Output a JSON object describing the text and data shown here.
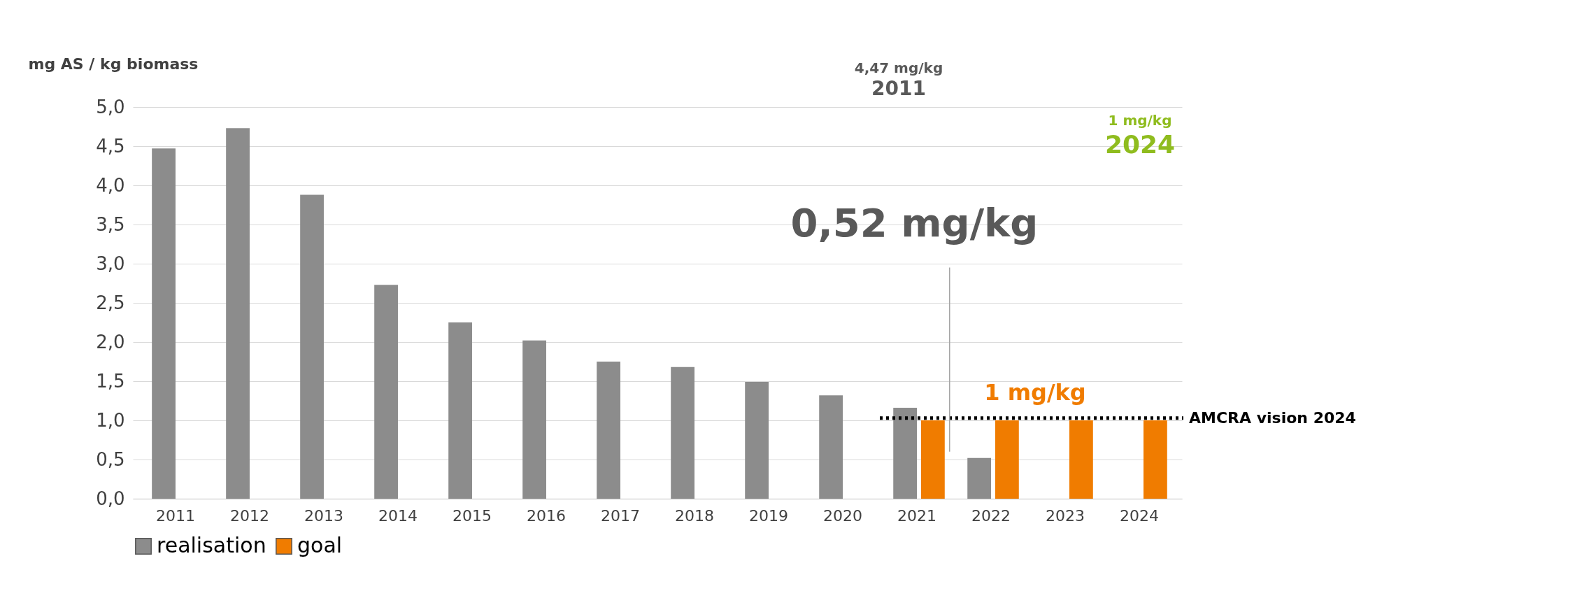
{
  "chart_data": {
    "type": "bar",
    "ylabel": "mg AS / kg biomass",
    "categories": [
      "2011",
      "2012",
      "2013",
      "2014",
      "2015",
      "2016",
      "2017",
      "2018",
      "2019",
      "2020",
      "2021",
      "2022",
      "2023",
      "2024"
    ],
    "series": [
      {
        "name": "realisation",
        "color": "#8c8c8c",
        "values": [
          4.47,
          4.73,
          3.88,
          2.73,
          2.25,
          2.02,
          1.75,
          1.68,
          1.49,
          1.32,
          1.16,
          0.52,
          null,
          null
        ]
      },
      {
        "name": "goal",
        "color": "#f07c00",
        "values": [
          null,
          null,
          null,
          null,
          null,
          null,
          null,
          null,
          null,
          null,
          1,
          1,
          1,
          1
        ]
      }
    ],
    "ylim": [
      0,
      5
    ],
    "yticks": [
      {
        "value": 0,
        "label": "0,0"
      },
      {
        "value": 0.5,
        "label": "0,5"
      },
      {
        "value": 1,
        "label": "1,0"
      },
      {
        "value": 1.5,
        "label": "1,5"
      },
      {
        "value": 2,
        "label": "2,0"
      },
      {
        "value": 2.5,
        "label": "2,5"
      },
      {
        "value": 3,
        "label": "3,0"
      },
      {
        "value": 3.5,
        "label": "3,5"
      },
      {
        "value": 4,
        "label": "4,0"
      },
      {
        "value": 4.5,
        "label": "4,5"
      },
      {
        "value": 5,
        "label": "5,0"
      }
    ],
    "grid": "y",
    "legend": "bottom",
    "ref_lines": [
      {
        "axis": "y",
        "value": 1.03,
        "label": "AMCRA vision 2024",
        "color": "#000000",
        "line_style": "dotted"
      }
    ],
    "annotations": [
      "0,52 mg/kg",
      "1 mg/kg",
      "4,47 mg/kg",
      "2011",
      "1 mg/kg",
      "2024"
    ]
  }
}
